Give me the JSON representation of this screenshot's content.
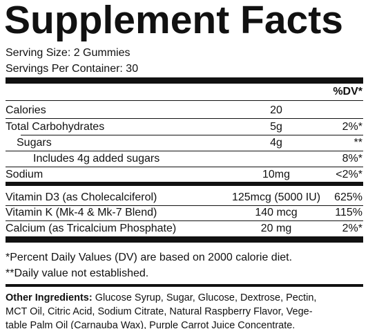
{
  "title": "Supplement Facts",
  "serving_size": "Serving Size: 2 Gummies",
  "servings_per_container": "Servings Per Container: 30",
  "dv_header": "%DV*",
  "nutrients": [
    {
      "name": "Calories",
      "amount": "20"
    },
    {
      "name": "Total Carbohydrates",
      "amount": "5g",
      "dv": "2%*"
    },
    {
      "name": "Sugars",
      "amount": "4g",
      "dv": "**"
    },
    {
      "name": "Includes 4g added sugars",
      "dv": "8%*"
    },
    {
      "name": "Sodium",
      "amount": "10mg",
      "dv": "<2%*"
    }
  ],
  "vitamins": [
    {
      "name": "Vitamin D3 (as Cholecalciferol)",
      "amount": "125mcg (5000 IU)",
      "dv": "625%"
    },
    {
      "name": "Vitamin K (Mk-4 & Mk-7 Blend)",
      "amount": "140 mcg",
      "dv": "115%"
    },
    {
      "name": "Calcium (as Tricalcium Phosphate)",
      "amount": "20 mg",
      "dv": "2%*"
    }
  ],
  "footnotes": [
    "*Percent Daily Values (DV) are based on 2000 calorie diet.",
    "**Daily value not established."
  ],
  "other_ingredients": {
    "label": "Other Ingredients:",
    "lines": [
      "Glucose Syrup, Sugar, Glucose, Dextrose, Pectin,",
      "MCT Oil, Citric Acid, Sodium Citrate, Natural Raspberry Flavor, Vege-",
      "table Palm Oil (Carnauba Wax), Purple Carrot Juice Concentrate."
    ]
  }
}
